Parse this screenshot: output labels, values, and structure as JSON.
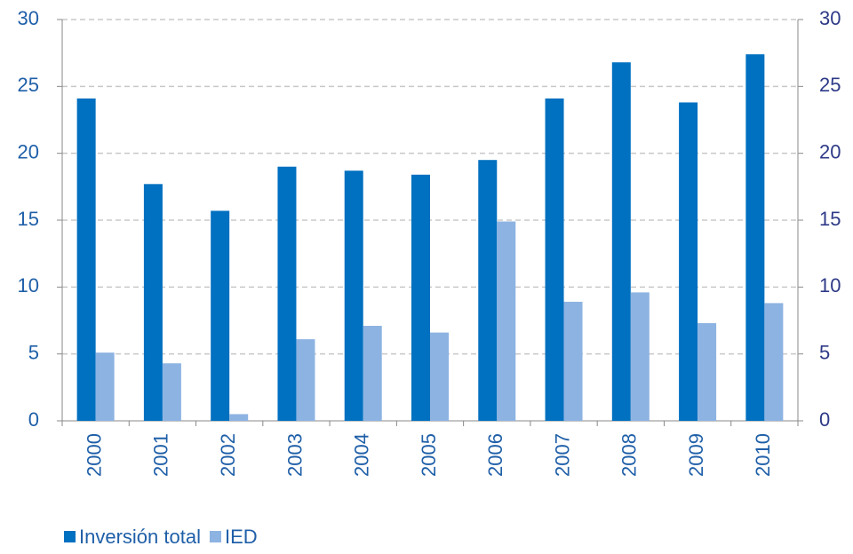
{
  "chart_data": {
    "type": "bar",
    "categories": [
      "2000",
      "2001",
      "2002",
      "2003",
      "2004",
      "2005",
      "2006",
      "2007",
      "2008",
      "2009",
      "2010"
    ],
    "series": [
      {
        "name": "Inversión total",
        "color": "#0070c0",
        "values": [
          24.1,
          17.7,
          15.7,
          19.0,
          18.7,
          18.4,
          19.5,
          24.1,
          26.8,
          23.8,
          27.4
        ]
      },
      {
        "name": "IED",
        "color": "#8db3e2",
        "values": [
          5.1,
          4.3,
          0.5,
          6.1,
          7.1,
          6.6,
          14.9,
          8.9,
          9.6,
          7.3,
          8.8
        ]
      }
    ],
    "ylim": [
      0,
      30
    ],
    "yticks": [
      0,
      5,
      10,
      15,
      20,
      25,
      30
    ],
    "y2lim": [
      0,
      30
    ],
    "y2ticks": [
      0,
      5,
      10,
      15,
      20,
      25,
      30
    ],
    "grid": true,
    "legend": "bottom"
  }
}
